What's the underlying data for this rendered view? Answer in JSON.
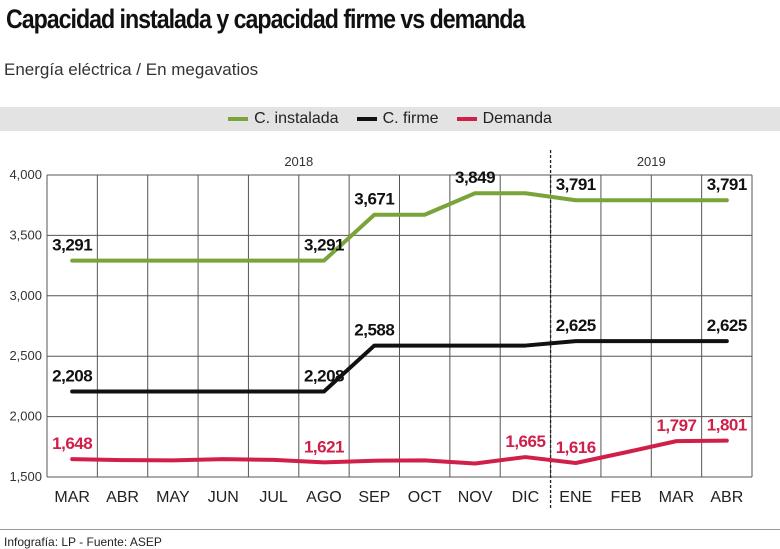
{
  "title": "Capacidad instalada y capacidad firme vs demanda",
  "subtitle": "Energía eléctrica / En megavatios",
  "footer": "Infografía: LP  - Fuente: ASEP",
  "chart_data": {
    "type": "line",
    "title": "Capacidad instalada y capacidad firme vs demanda",
    "subtitle": "Energía eléctrica / En megavatios",
    "categories": [
      "MAR",
      "ABR",
      "MAY",
      "JUN",
      "JUL",
      "AGO",
      "SEP",
      "OCT",
      "NOV",
      "DIC",
      "ENE",
      "FEB",
      "MAR",
      "ABR"
    ],
    "year_labels": [
      {
        "label": "2018",
        "from": 0,
        "to": 9
      },
      {
        "label": "2019",
        "from": 10,
        "to": 13
      }
    ],
    "ylim": [
      1500,
      4000
    ],
    "yticks": [
      1500,
      2000,
      2500,
      3000,
      3500,
      4000
    ],
    "ytick_labels": [
      "1,500",
      "2,000",
      "2,500",
      "3,000",
      "3,500",
      "4,000"
    ],
    "grid": true,
    "legend": "top-center",
    "series": [
      {
        "name": "C. instalada",
        "color": "#7aa33a",
        "values": [
          3291,
          3291,
          3291,
          3291,
          3291,
          3291,
          3671,
          3671,
          3849,
          3849,
          3791,
          3791,
          3791,
          3791
        ],
        "labels": [
          "3,291",
          null,
          null,
          null,
          null,
          "3,291",
          "3,671",
          null,
          "3,849",
          null,
          "3,791",
          null,
          null,
          "3,791"
        ],
        "label_color": "#111111"
      },
      {
        "name": "C. firme",
        "color": "#111111",
        "values": [
          2208,
          2208,
          2208,
          2208,
          2208,
          2208,
          2588,
          2588,
          2588,
          2588,
          2625,
          2625,
          2625,
          2625
        ],
        "labels": [
          "2,208",
          null,
          null,
          null,
          null,
          "2,208",
          "2,588",
          null,
          null,
          null,
          "2,625",
          null,
          null,
          "2,625"
        ],
        "label_color": "#111111"
      },
      {
        "name": "Demanda",
        "color": "#d0204a",
        "values": [
          1648,
          1640,
          1638,
          1648,
          1642,
          1621,
          1635,
          1638,
          1612,
          1665,
          1616,
          1705,
          1797,
          1801
        ],
        "labels": [
          "1,648",
          null,
          null,
          null,
          null,
          "1,621",
          null,
          null,
          null,
          "1,665",
          "1,616",
          null,
          "1,797",
          "1,801"
        ],
        "label_color": "#d0204a"
      }
    ]
  }
}
